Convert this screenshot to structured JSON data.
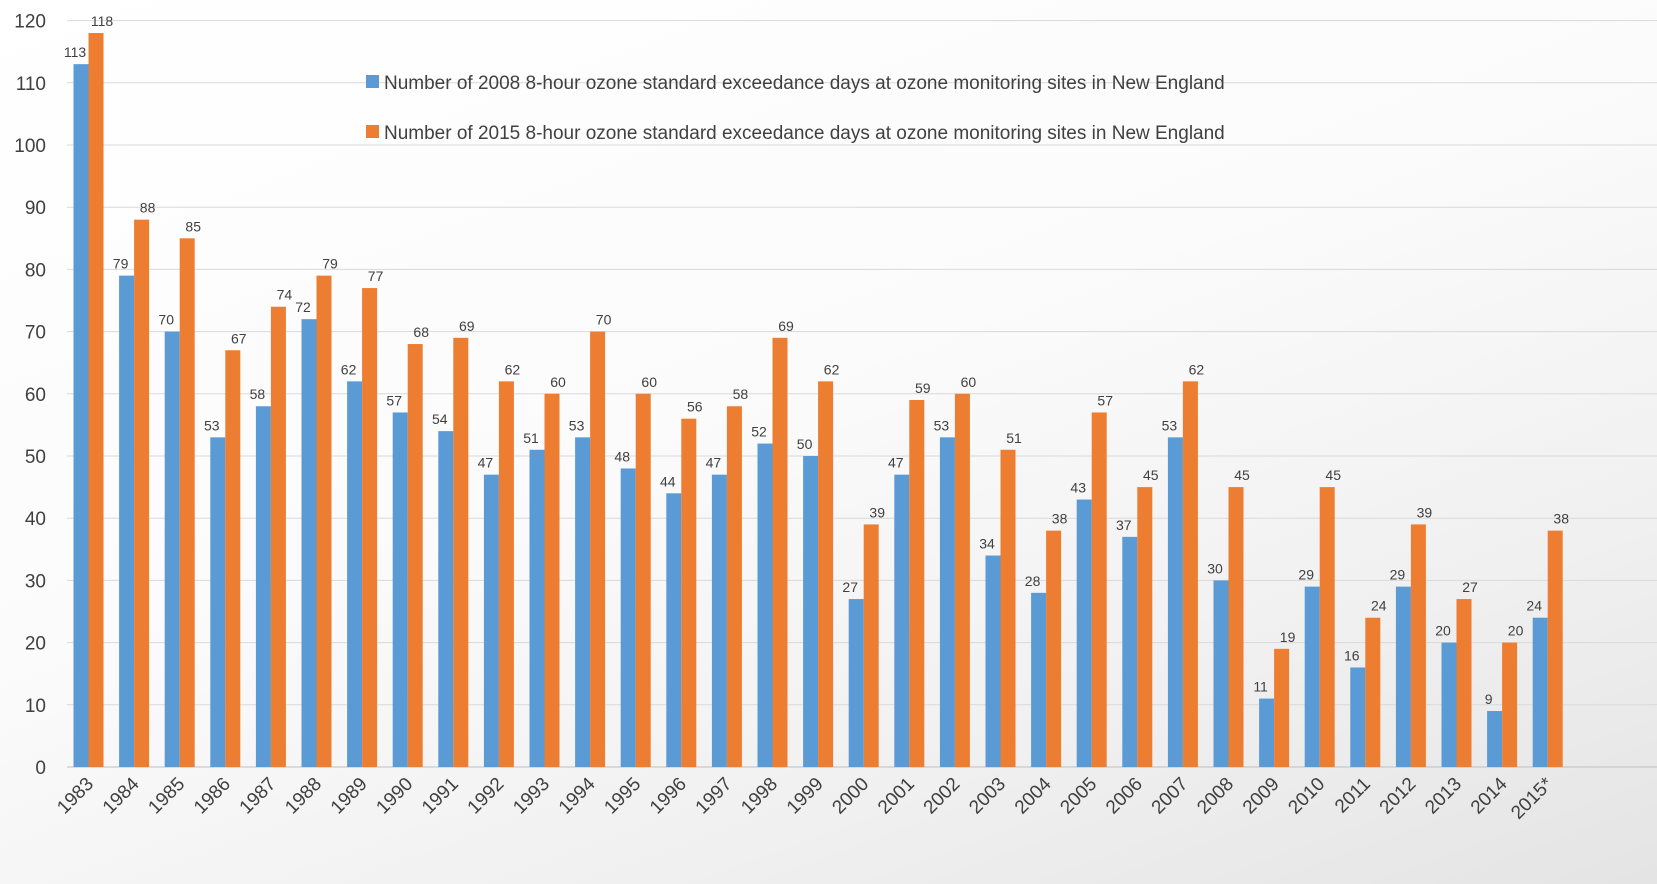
{
  "chart_data": {
    "type": "bar",
    "title": "",
    "xlabel": "",
    "ylabel": "",
    "ylim": [
      0,
      120
    ],
    "yticks": [
      0,
      10,
      20,
      30,
      40,
      50,
      60,
      70,
      80,
      90,
      100,
      110,
      120
    ],
    "grid": true,
    "legend_position": "top-center",
    "categories": [
      "1983",
      "1984",
      "1985",
      "1986",
      "1987",
      "1988",
      "1989",
      "1990",
      "1991",
      "1992",
      "1993",
      "1994",
      "1995",
      "1996",
      "1997",
      "1998",
      "1999",
      "2000",
      "2001",
      "2002",
      "2003",
      "2004",
      "2005",
      "2006",
      "2007",
      "2008",
      "2009",
      "2010",
      "2011",
      "2012",
      "2013",
      "2014",
      "2015*"
    ],
    "series": [
      {
        "name": "Number of 2008 8-hour ozone standard exceedance days at ozone monitoring sites in New England",
        "color": "#5b9bd5",
        "values": [
          113,
          79,
          70,
          53,
          58,
          72,
          62,
          57,
          54,
          47,
          51,
          53,
          48,
          44,
          47,
          52,
          50,
          27,
          47,
          53,
          34,
          28,
          43,
          37,
          53,
          30,
          11,
          29,
          16,
          29,
          20,
          9,
          24
        ]
      },
      {
        "name": "Number of 2015 8-hour ozone standard exceedance days at ozone monitoring sites in New England",
        "color": "#ed7d31",
        "values": [
          118,
          88,
          85,
          67,
          74,
          79,
          77,
          68,
          69,
          62,
          60,
          70,
          60,
          56,
          58,
          69,
          62,
          39,
          59,
          60,
          51,
          38,
          57,
          45,
          62,
          45,
          19,
          45,
          24,
          39,
          27,
          20,
          38
        ]
      }
    ]
  }
}
